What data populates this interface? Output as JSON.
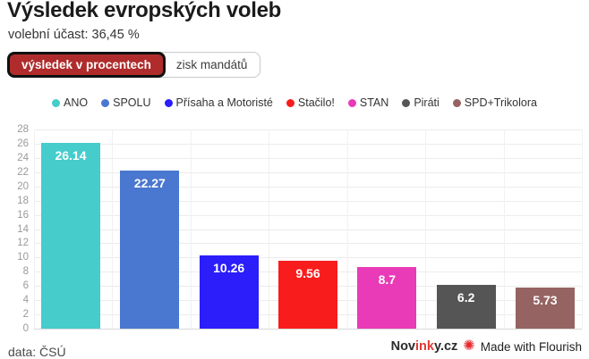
{
  "header": {
    "title": "Výsledek evropských voleb",
    "subtitle": "volební účast: 36,45 %"
  },
  "tabs": [
    {
      "label": "výsledek v procentech",
      "selected": true
    },
    {
      "label": "zisk mandátů",
      "selected": false
    }
  ],
  "chart_data": {
    "type": "bar",
    "categories": [
      "ANO",
      "SPOLU",
      "Přísaha a Motoristé",
      "Stačilo!",
      "STAN",
      "Piráti",
      "SPD+Trikolora"
    ],
    "values": [
      26.14,
      22.27,
      10.26,
      9.56,
      8.7,
      6.2,
      5.73
    ],
    "value_labels": [
      "26.14",
      "22.27",
      "10.26",
      "9.56",
      "8.7",
      "6.2",
      "5.73"
    ],
    "colors": [
      "#45cccb",
      "#4a77cf",
      "#2b1efa",
      "#f91c1c",
      "#e93ab8",
      "#555555",
      "#966363"
    ],
    "title": "Výsledek evropských voleb",
    "xlabel": "",
    "ylabel": "",
    "ylim": [
      0,
      28
    ],
    "ytick_step": 2,
    "grid": true,
    "legend_position": "top-center"
  },
  "footer": {
    "source": "data: ČSÚ",
    "brand_prefix": "Nov",
    "brand_highlight": "ink",
    "brand_suffix": "y.cz",
    "flourish_label": "Made with Flourish",
    "flourish_icon": "✺"
  },
  "colors": {
    "tab_selected_bg": "#b02c2c",
    "tab_selected_border": "#101010",
    "title_color": "#1b1b1b",
    "grid_color": "#ececec"
  }
}
